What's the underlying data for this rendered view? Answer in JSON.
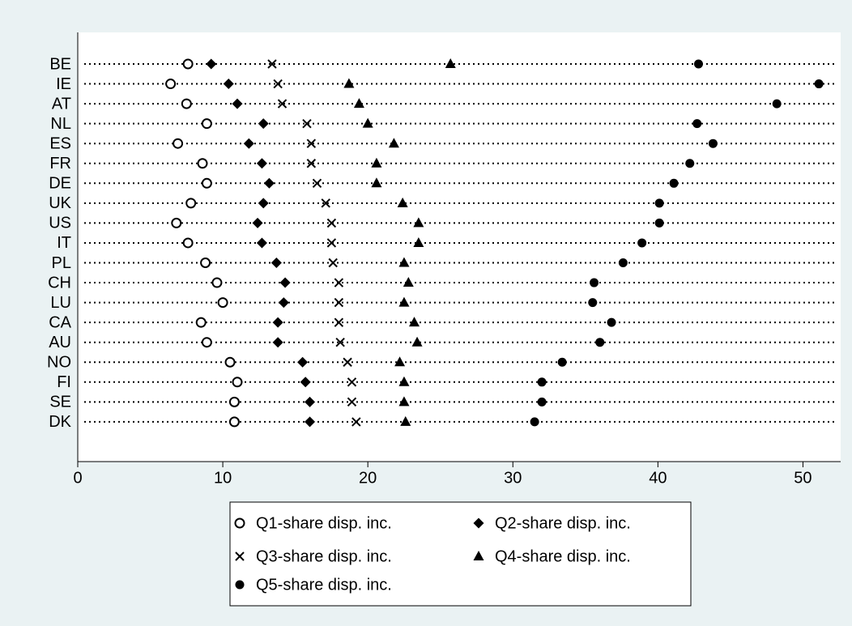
{
  "chart_data": {
    "type": "dot",
    "categories": [
      "BE",
      "IE",
      "AT",
      "NL",
      "ES",
      "FR",
      "DE",
      "UK",
      "US",
      "IT",
      "PL",
      "CH",
      "LU",
      "CA",
      "AU",
      "NO",
      "FI",
      "SE",
      "DK"
    ],
    "xlim": [
      0,
      52.6
    ],
    "xticks": [
      0,
      10,
      20,
      30,
      40,
      50
    ],
    "series": [
      {
        "name": "Q1-share disp. inc.",
        "color": "#000000",
        "marker": "hollow-circle",
        "values": [
          7.6,
          6.4,
          7.5,
          8.9,
          6.9,
          8.6,
          8.9,
          7.8,
          6.8,
          7.6,
          8.8,
          9.6,
          10.0,
          8.5,
          8.9,
          10.5,
          11.0,
          10.8,
          10.8
        ]
      },
      {
        "name": "Q2-share disp. inc.",
        "color": "#000000",
        "marker": "diamond",
        "values": [
          9.2,
          10.4,
          11.0,
          12.8,
          11.8,
          12.7,
          13.2,
          12.8,
          12.4,
          12.7,
          13.7,
          14.3,
          14.2,
          13.8,
          13.8,
          15.5,
          15.7,
          16.0,
          16.0
        ]
      },
      {
        "name": "Q3-share disp. inc.",
        "color": "#000000",
        "marker": "x",
        "values": [
          13.4,
          13.8,
          14.1,
          15.8,
          16.1,
          16.1,
          16.5,
          17.1,
          17.5,
          17.5,
          17.6,
          18.0,
          18.0,
          18.0,
          18.1,
          18.6,
          18.9,
          18.9,
          19.2
        ]
      },
      {
        "name": "Q4-share disp. inc.",
        "color": "#000000",
        "marker": "triangle",
        "values": [
          25.7,
          18.7,
          19.4,
          20.0,
          21.8,
          20.6,
          20.6,
          22.4,
          23.5,
          23.5,
          22.5,
          22.8,
          22.5,
          23.2,
          23.4,
          22.2,
          22.5,
          22.5,
          22.6
        ]
      },
      {
        "name": "Q5-share disp. inc.",
        "color": "#000000",
        "marker": "circle",
        "values": [
          42.8,
          51.1,
          48.2,
          42.7,
          43.8,
          42.2,
          41.1,
          40.1,
          40.1,
          38.9,
          37.6,
          35.6,
          35.5,
          36.8,
          36.0,
          33.4,
          32.0,
          32.0,
          31.5
        ]
      }
    ]
  }
}
